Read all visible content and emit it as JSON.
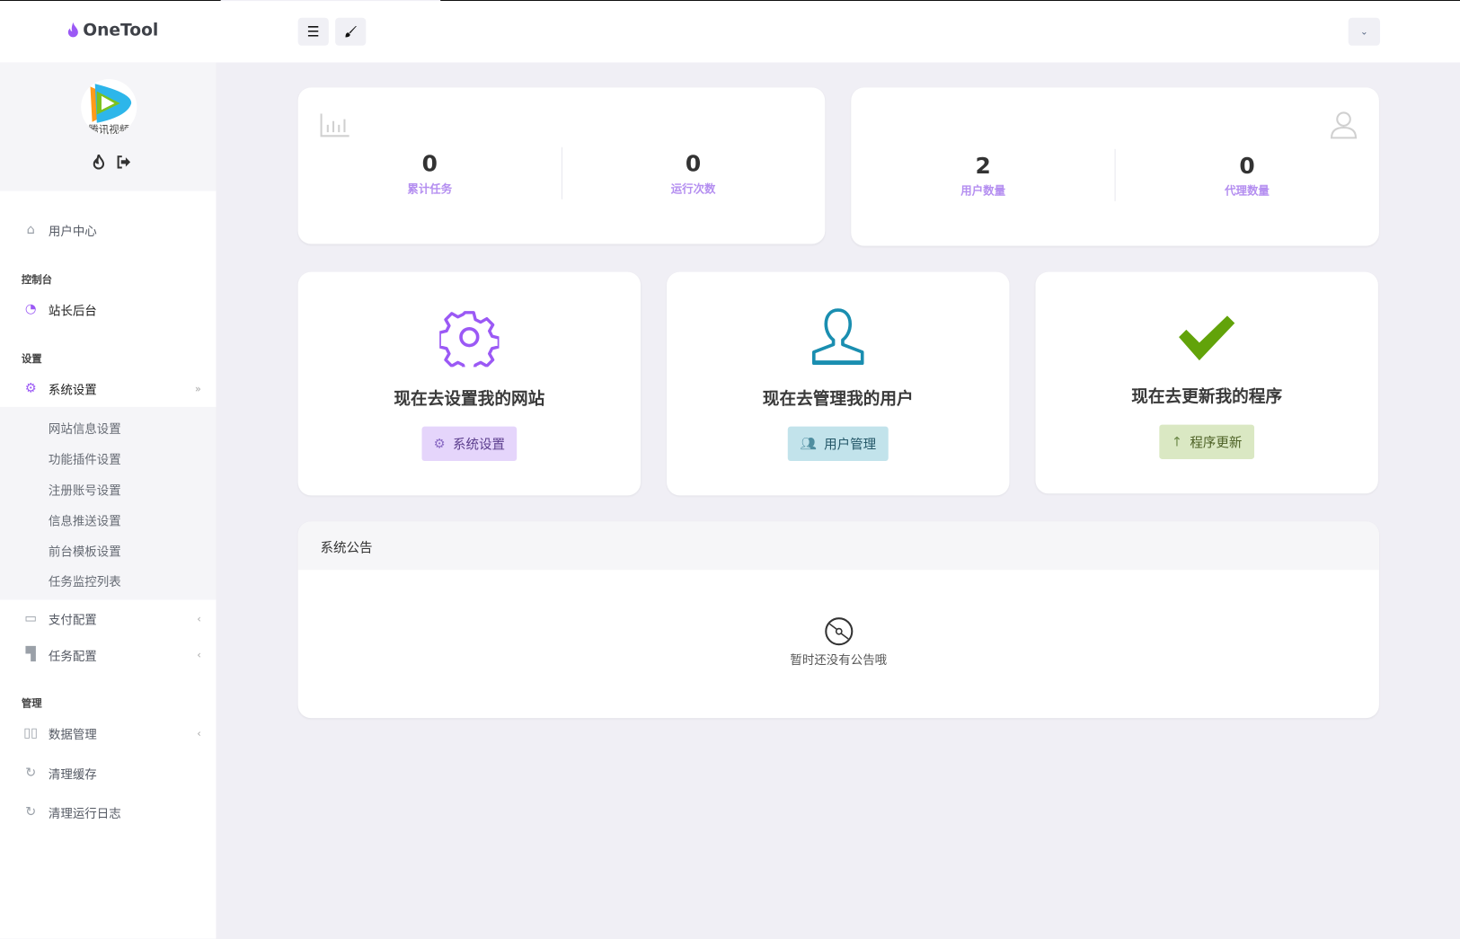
{
  "app": {
    "name": "OneTool"
  },
  "header": {
    "menu_icon": "hamburger-icon",
    "theme_icon": "brush-icon",
    "dropdown_icon": "chevron-down-icon"
  },
  "profile": {
    "avatar_text": "腾讯视频",
    "icons": [
      "fire-icon",
      "logout-icon"
    ]
  },
  "sidebar": {
    "user_center": "用户中心",
    "section_console": "控制台",
    "admin_panel": "站长后台",
    "section_settings": "设置",
    "system_settings": "系统设置",
    "sub_items": [
      "网站信息设置",
      "功能插件设置",
      "注册账号设置",
      "信息推送设置",
      "前台模板设置",
      "任务监控列表"
    ],
    "payment_config": "支付配置",
    "task_config": "任务配置",
    "section_manage": "管理",
    "data_manage": "数据管理",
    "clear_cache": "清理缓存",
    "clear_logs": "清理运行日志"
  },
  "stats": {
    "total_tasks": {
      "value": "0",
      "label": "累计任务"
    },
    "run_count": {
      "value": "0",
      "label": "运行次数"
    },
    "user_count": {
      "value": "2",
      "label": "用户数量"
    },
    "agent_count": {
      "value": "0",
      "label": "代理数量"
    }
  },
  "actions": [
    {
      "title": "现在去设置我的网站",
      "button": "系统设置",
      "color": "#9b59f5",
      "btn_bg": "#e5d5fb",
      "btn_fg": "#5a3c8c"
    },
    {
      "title": "现在去管理我的用户",
      "button": "用户管理",
      "color": "#1a8eb0",
      "btn_bg": "#c2e3eb",
      "btn_fg": "#245768"
    },
    {
      "title": "现在去更新我的程序",
      "button": "程序更新",
      "color": "#62a30a",
      "btn_bg": "#dae8c3",
      "btn_fg": "#4a5e22"
    }
  ],
  "notice": {
    "title": "系统公告",
    "empty": "暂时还没有公告哦"
  }
}
